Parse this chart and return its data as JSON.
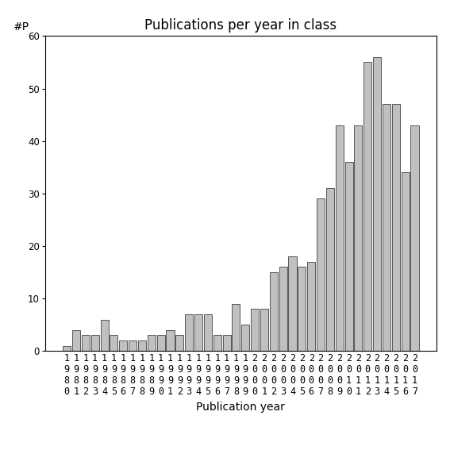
{
  "title": "Publications per year in class",
  "xlabel": "Publication year",
  "ylabel": "#P",
  "years": [
    1980,
    1981,
    1982,
    1983,
    1984,
    1985,
    1986,
    1987,
    1988,
    1989,
    1990,
    1991,
    1992,
    1993,
    1994,
    1995,
    1996,
    1997,
    1998,
    1999,
    2000,
    2001,
    2002,
    2003,
    2004,
    2005,
    2006,
    2007,
    2008,
    2009,
    2010,
    2011,
    2012,
    2013,
    2014,
    2015,
    2016,
    2017
  ],
  "values": [
    1,
    4,
    3,
    3,
    6,
    3,
    2,
    2,
    2,
    3,
    3,
    4,
    3,
    7,
    7,
    7,
    3,
    3,
    9,
    5,
    8,
    8,
    15,
    16,
    18,
    16,
    17,
    29,
    31,
    43,
    36,
    43,
    55,
    56,
    47,
    47,
    34,
    43
  ],
  "bar_color": "#c0c0c0",
  "bar_edge_color": "#404040",
  "ylim": [
    0,
    60
  ],
  "yticks": [
    0,
    10,
    20,
    30,
    40,
    50,
    60
  ],
  "background_color": "#ffffff",
  "title_fontsize": 12,
  "label_fontsize": 10,
  "tick_fontsize": 8.5
}
